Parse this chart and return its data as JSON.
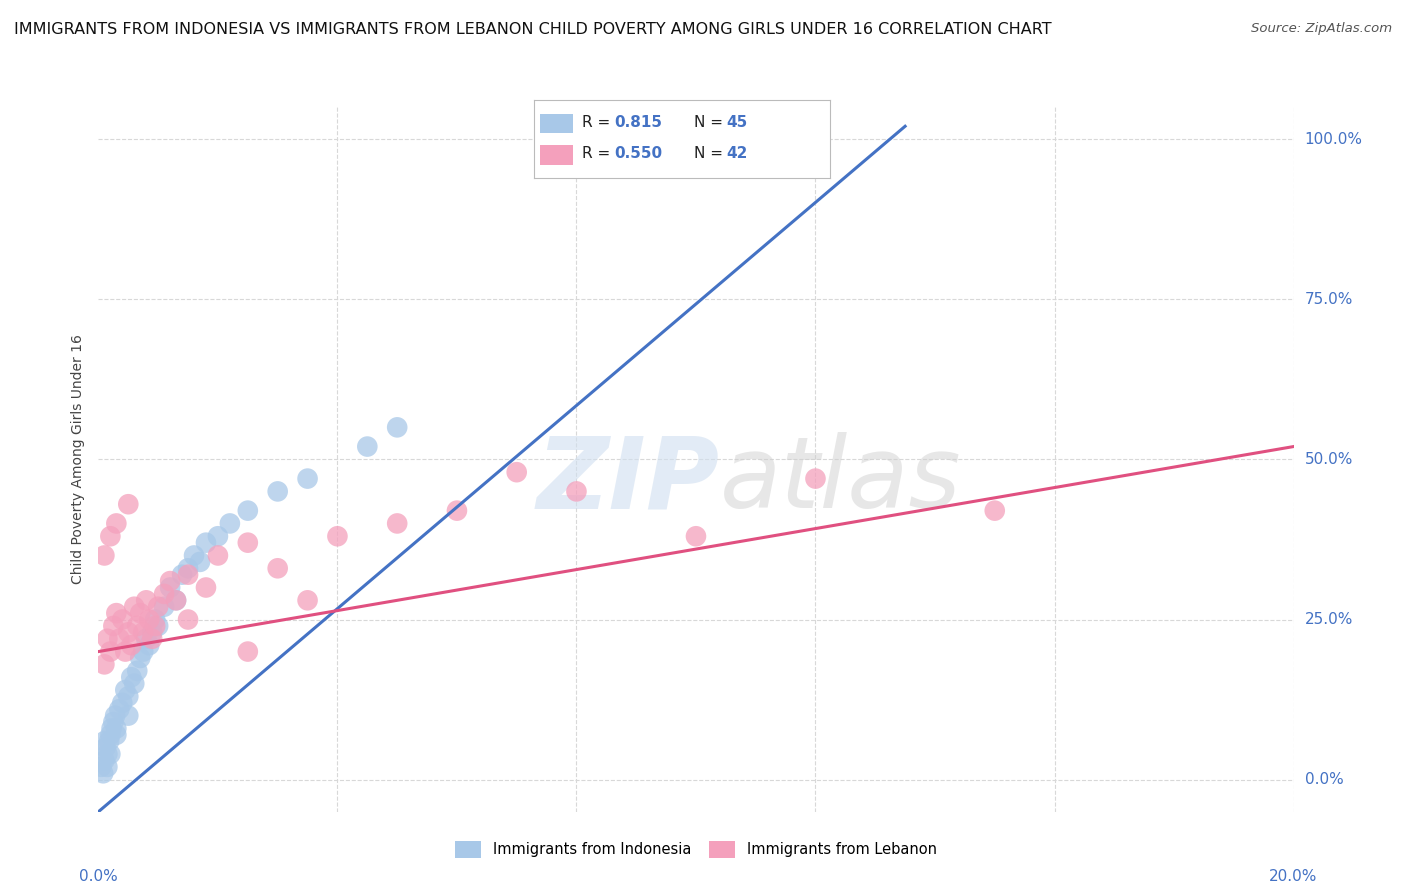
{
  "title": "IMMIGRANTS FROM INDONESIA VS IMMIGRANTS FROM LEBANON CHILD POVERTY AMONG GIRLS UNDER 16 CORRELATION CHART",
  "source": "Source: ZipAtlas.com",
  "ylabel": "Child Poverty Among Girls Under 16",
  "ytick_labels": [
    "0.0%",
    "25.0%",
    "50.0%",
    "75.0%",
    "100.0%"
  ],
  "ytick_values": [
    0,
    25,
    50,
    75,
    100
  ],
  "xmin": 0,
  "xmax": 20,
  "ymin": -5,
  "ymax": 105,
  "series": [
    {
      "name": "Immigrants from Indonesia",
      "R": "0.815",
      "N": "45",
      "color_scatter": "#a8c8e8",
      "color_line": "#4472c4",
      "color_legend_box": "#a8c8e8",
      "regression_x0": 0,
      "regression_y0": -5,
      "regression_x1": 13.5,
      "regression_y1": 102,
      "points": [
        [
          0.05,
          2
        ],
        [
          0.08,
          1
        ],
        [
          0.1,
          3
        ],
        [
          0.12,
          5
        ],
        [
          0.15,
          4
        ],
        [
          0.18,
          6
        ],
        [
          0.2,
          7
        ],
        [
          0.22,
          8
        ],
        [
          0.25,
          9
        ],
        [
          0.28,
          10
        ],
        [
          0.3,
          8
        ],
        [
          0.35,
          11
        ],
        [
          0.4,
          12
        ],
        [
          0.45,
          14
        ],
        [
          0.5,
          13
        ],
        [
          0.55,
          16
        ],
        [
          0.6,
          15
        ],
        [
          0.65,
          17
        ],
        [
          0.7,
          19
        ],
        [
          0.75,
          20
        ],
        [
          0.8,
          22
        ],
        [
          0.85,
          21
        ],
        [
          0.9,
          23
        ],
        [
          0.95,
          25
        ],
        [
          1.0,
          24
        ],
        [
          1.1,
          27
        ],
        [
          1.2,
          30
        ],
        [
          1.3,
          28
        ],
        [
          1.4,
          32
        ],
        [
          1.5,
          33
        ],
        [
          1.6,
          35
        ],
        [
          1.7,
          34
        ],
        [
          1.8,
          37
        ],
        [
          2.0,
          38
        ],
        [
          2.2,
          40
        ],
        [
          2.5,
          42
        ],
        [
          3.0,
          45
        ],
        [
          3.5,
          47
        ],
        [
          4.5,
          52
        ],
        [
          5.0,
          55
        ],
        [
          0.1,
          6
        ],
        [
          0.15,
          2
        ],
        [
          0.2,
          4
        ],
        [
          0.3,
          7
        ],
        [
          0.5,
          10
        ]
      ]
    },
    {
      "name": "Immigrants from Lebanon",
      "R": "0.550",
      "N": "42",
      "color_scatter": "#f4a0bc",
      "color_line": "#e05080",
      "color_legend_box": "#f4a0bc",
      "regression_x0": 0,
      "regression_y0": 20,
      "regression_x1": 20,
      "regression_y1": 52,
      "points": [
        [
          0.1,
          18
        ],
        [
          0.15,
          22
        ],
        [
          0.2,
          20
        ],
        [
          0.25,
          24
        ],
        [
          0.3,
          26
        ],
        [
          0.35,
          22
        ],
        [
          0.4,
          25
        ],
        [
          0.45,
          20
        ],
        [
          0.5,
          23
        ],
        [
          0.55,
          21
        ],
        [
          0.6,
          27
        ],
        [
          0.65,
          24
        ],
        [
          0.7,
          26
        ],
        [
          0.75,
          23
        ],
        [
          0.8,
          28
        ],
        [
          0.85,
          25
        ],
        [
          0.9,
          22
        ],
        [
          0.95,
          24
        ],
        [
          1.0,
          27
        ],
        [
          1.1,
          29
        ],
        [
          1.2,
          31
        ],
        [
          1.3,
          28
        ],
        [
          1.5,
          32
        ],
        [
          1.8,
          30
        ],
        [
          2.0,
          35
        ],
        [
          2.5,
          37
        ],
        [
          3.0,
          33
        ],
        [
          0.2,
          38
        ],
        [
          0.3,
          40
        ],
        [
          0.5,
          43
        ],
        [
          4.0,
          38
        ],
        [
          5.0,
          40
        ],
        [
          6.0,
          42
        ],
        [
          8.0,
          45
        ],
        [
          10.0,
          38
        ],
        [
          12.0,
          47
        ],
        [
          15.0,
          42
        ],
        [
          0.1,
          35
        ],
        [
          1.5,
          25
        ],
        [
          2.5,
          20
        ],
        [
          7.0,
          48
        ],
        [
          3.5,
          28
        ]
      ]
    }
  ],
  "watermark_zip": "ZIP",
  "watermark_atlas": "atlas",
  "background_color": "#ffffff",
  "grid_color": "#d8d8d8",
  "grid_style": "--",
  "title_fontsize": 11.5,
  "source_fontsize": 9.5,
  "axis_label_fontsize": 10,
  "tick_fontsize": 11,
  "ytick_color": "#4472c4",
  "legend_R_color": "#4472c4",
  "legend_N_color": "#4472c4"
}
